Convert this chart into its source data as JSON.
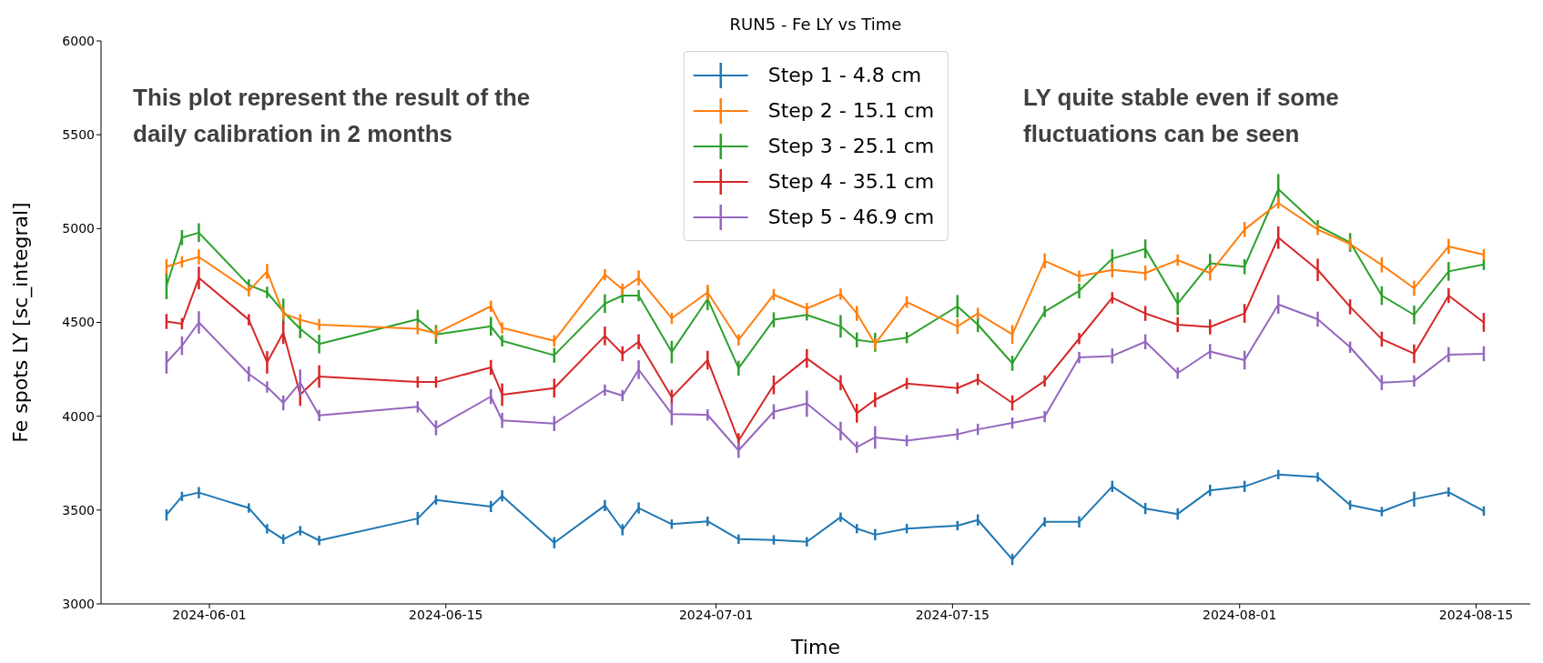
{
  "chart_data": {
    "type": "line",
    "title": "RUN5 - Fe LY vs Time",
    "xlabel": "Time",
    "ylabel": "Fe spots LY [sc_integral]",
    "annotations": [
      "This plot represent the result of the daily calibration in 2 months",
      "LY quite stable even if some fluctuations can be seen"
    ],
    "x": [
      "2024-05-29T11:00",
      "2024-05-30T09:00",
      "2024-05-31T09:00",
      "2024-06-03T08:00",
      "2024-06-04T10:00",
      "2024-06-05T09:00",
      "2024-06-06T09:00",
      "2024-06-07T12:00",
      "2024-06-13T08:00",
      "2024-06-14T10:00",
      "2024-06-17T16:00",
      "2024-06-18T08:00",
      "2024-06-21T10:00",
      "2024-06-24T10:00",
      "2024-06-25T11:00",
      "2024-06-26T10:00",
      "2024-06-28T09:00",
      "2024-06-30T12:00",
      "2024-07-02T08:00",
      "2024-07-04T10:00",
      "2024-07-06T09:00",
      "2024-07-08T09:00",
      "2024-07-09T08:00",
      "2024-07-10T10:00",
      "2024-07-12T07:00",
      "2024-07-15T07:00",
      "2024-07-16T12:00",
      "2024-07-18T13:00",
      "2024-07-20T11:00",
      "2024-07-22T12:00",
      "2024-07-24T11:00",
      "2024-07-26T10:00",
      "2024-07-28T08:00",
      "2024-07-30T06:00",
      "2024-08-01T07:00",
      "2024-08-03T07:00",
      "2024-08-05T15:00",
      "2024-08-07T13:00",
      "2024-08-09T10:00",
      "2024-08-11T08:00",
      "2024-08-13T09:00",
      "2024-08-15T11:00"
    ],
    "series": [
      {
        "name": "Step 1 - 4.8 cm",
        "color": "#1f77b4",
        "values": [
          3474,
          3573,
          3593,
          3511,
          3400,
          3345,
          3390,
          3338,
          3455,
          3554,
          3519,
          3576,
          3326,
          3524,
          3395,
          3511,
          3425,
          3440,
          3345,
          3341,
          3331,
          3462,
          3401,
          3369,
          3401,
          3417,
          3447,
          3237,
          3437,
          3437,
          3626,
          3508,
          3479,
          3605,
          3626,
          3689,
          3676,
          3527,
          3492,
          3558,
          3596,
          3495
        ],
        "errors": [
          30,
          25,
          30,
          25,
          25,
          25,
          25,
          25,
          35,
          25,
          30,
          30,
          30,
          30,
          30,
          30,
          25,
          25,
          25,
          25,
          25,
          25,
          25,
          30,
          25,
          25,
          30,
          30,
          25,
          30,
          30,
          30,
          30,
          30,
          30,
          25,
          25,
          25,
          25,
          40,
          25,
          25
        ]
      },
      {
        "name": "Step 2 - 15.1 cm",
        "color": "#ff7f0e",
        "values": [
          4797,
          4823,
          4849,
          4668,
          4772,
          4548,
          4514,
          4488,
          4466,
          4442,
          4586,
          4471,
          4402,
          4754,
          4677,
          4737,
          4522,
          4660,
          4407,
          4648,
          4574,
          4651,
          4548,
          4385,
          4608,
          4479,
          4548,
          4436,
          4828,
          4746,
          4780,
          4763,
          4832,
          4763,
          4995,
          5136,
          4995,
          4918,
          4806,
          4682,
          4905,
          4861
        ],
        "errors": [
          40,
          30,
          40,
          30,
          40,
          30,
          30,
          30,
          30,
          30,
          30,
          30,
          30,
          30,
          30,
          40,
          30,
          40,
          30,
          30,
          30,
          30,
          40,
          30,
          30,
          40,
          30,
          50,
          40,
          30,
          40,
          40,
          30,
          40,
          40,
          30,
          30,
          30,
          40,
          40,
          40,
          30
        ]
      },
      {
        "name": "Step 3 - 25.1 cm",
        "color": "#2ca02c",
        "values": [
          4694,
          4952,
          4978,
          4699,
          4660,
          4557,
          4466,
          4385,
          4517,
          4436,
          4479,
          4402,
          4325,
          4600,
          4643,
          4643,
          4342,
          4625,
          4256,
          4514,
          4540,
          4479,
          4407,
          4394,
          4419,
          4586,
          4488,
          4282,
          4558,
          4668,
          4840,
          4892,
          4600,
          4815,
          4797,
          5210,
          5015,
          4926,
          4643,
          4540,
          4772,
          4809
        ],
        "errors": [
          70,
          40,
          50,
          30,
          30,
          70,
          50,
          50,
          50,
          50,
          50,
          30,
          40,
          50,
          40,
          30,
          60,
          60,
          40,
          40,
          30,
          60,
          40,
          50,
          30,
          60,
          40,
          40,
          30,
          40,
          50,
          50,
          60,
          50,
          40,
          80,
          30,
          50,
          50,
          50,
          50,
          30
        ]
      },
      {
        "name": "Step 4 - 35.1 cm",
        "color": "#d62728",
        "values": [
          4505,
          4493,
          4737,
          4514,
          4287,
          4445,
          4115,
          4212,
          4182,
          4182,
          4260,
          4115,
          4150,
          4428,
          4333,
          4397,
          4101,
          4299,
          3870,
          4167,
          4308,
          4179,
          4016,
          4088,
          4174,
          4150,
          4196,
          4071,
          4188,
          4414,
          4631,
          4548,
          4488,
          4476,
          4548,
          4952,
          4780,
          4583,
          4411,
          4333,
          4643,
          4500
        ],
        "errors": [
          40,
          30,
          60,
          30,
          60,
          60,
          60,
          60,
          30,
          30,
          40,
          60,
          50,
          50,
          40,
          40,
          40,
          50,
          40,
          50,
          50,
          40,
          50,
          40,
          30,
          30,
          30,
          40,
          30,
          30,
          30,
          40,
          40,
          40,
          50,
          60,
          60,
          40,
          40,
          50,
          40,
          50
        ]
      },
      {
        "name": "Step 5 - 46.9 cm",
        "color": "#9467bd",
        "values": [
          4287,
          4376,
          4500,
          4225,
          4156,
          4071,
          4179,
          4004,
          4050,
          3938,
          4105,
          3978,
          3961,
          4139,
          4110,
          4248,
          4012,
          4007,
          3818,
          4024,
          4067,
          3921,
          3835,
          3887,
          3870,
          3904,
          3930,
          3964,
          3998,
          4313,
          4321,
          4397,
          4230,
          4345,
          4299,
          4596,
          4517,
          4368,
          4179,
          4188,
          4328,
          4333
        ],
        "errors": [
          60,
          50,
          60,
          40,
          30,
          40,
          70,
          30,
          30,
          40,
          40,
          40,
          40,
          30,
          30,
          50,
          60,
          30,
          40,
          40,
          70,
          50,
          30,
          60,
          30,
          30,
          30,
          30,
          30,
          30,
          40,
          40,
          30,
          40,
          50,
          50,
          40,
          30,
          40,
          30,
          40,
          40
        ]
      }
    ],
    "xlim": [
      "2024-05-25T14:00",
      "2024-08-18T05:00"
    ],
    "xticks": [
      "2024-06-01",
      "2024-06-15",
      "2024-07-01",
      "2024-07-15",
      "2024-08-01",
      "2024-08-15"
    ],
    "ylim": [
      3000,
      6000
    ],
    "yticks": [
      3000,
      3500,
      4000,
      4500,
      5000,
      5500,
      6000
    ],
    "legend": "top",
    "marker": "none",
    "line_style": "solid"
  }
}
